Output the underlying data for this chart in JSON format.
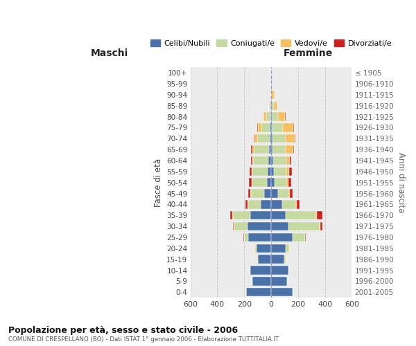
{
  "age_groups": [
    "0-4",
    "5-9",
    "10-14",
    "15-19",
    "20-24",
    "25-29",
    "30-34",
    "35-39",
    "40-44",
    "45-49",
    "50-54",
    "55-59",
    "60-64",
    "65-69",
    "70-74",
    "75-79",
    "80-84",
    "85-89",
    "90-94",
    "95-99",
    "100+"
  ],
  "birth_years": [
    "2001-2005",
    "1996-2000",
    "1991-1995",
    "1986-1990",
    "1981-1985",
    "1976-1980",
    "1971-1975",
    "1966-1970",
    "1961-1965",
    "1956-1960",
    "1951-1955",
    "1946-1950",
    "1941-1945",
    "1936-1940",
    "1931-1935",
    "1926-1930",
    "1921-1925",
    "1916-1920",
    "1911-1915",
    "1906-1910",
    "≤ 1905"
  ],
  "males": {
    "celibi": [
      185,
      140,
      155,
      100,
      110,
      170,
      175,
      155,
      80,
      50,
      30,
      25,
      20,
      15,
      12,
      8,
      5,
      3,
      2,
      1,
      0
    ],
    "coniugati": [
      2,
      2,
      3,
      5,
      10,
      30,
      100,
      130,
      90,
      100,
      110,
      115,
      115,
      110,
      90,
      65,
      30,
      8,
      3,
      1,
      0
    ],
    "vedovi": [
      0,
      0,
      0,
      1,
      2,
      3,
      3,
      3,
      3,
      3,
      3,
      3,
      5,
      15,
      20,
      25,
      20,
      5,
      2,
      0,
      0
    ],
    "divorziati": [
      0,
      0,
      0,
      0,
      2,
      5,
      5,
      18,
      20,
      18,
      20,
      18,
      10,
      8,
      5,
      3,
      2,
      0,
      0,
      0,
      0
    ]
  },
  "females": {
    "nubili": [
      160,
      120,
      130,
      100,
      110,
      160,
      130,
      110,
      80,
      50,
      25,
      20,
      15,
      10,
      8,
      5,
      5,
      3,
      2,
      1,
      0
    ],
    "coniugate": [
      3,
      3,
      5,
      10,
      25,
      90,
      230,
      220,
      100,
      80,
      90,
      95,
      100,
      100,
      100,
      80,
      45,
      15,
      5,
      1,
      0
    ],
    "vedove": [
      0,
      0,
      0,
      2,
      3,
      5,
      5,
      10,
      10,
      10,
      15,
      20,
      25,
      55,
      65,
      80,
      55,
      30,
      18,
      5,
      0
    ],
    "divorziate": [
      0,
      0,
      0,
      0,
      3,
      5,
      15,
      40,
      20,
      20,
      20,
      20,
      10,
      5,
      5,
      3,
      2,
      0,
      0,
      0,
      0
    ]
  },
  "colors": {
    "celibi": "#4a72a8",
    "coniugati": "#c5d9a0",
    "vedovi": "#f5c060",
    "divorziati": "#cc2020"
  },
  "xlim": 600,
  "title": "Popolazione per età, sesso e stato civile - 2006",
  "subtitle": "COMUNE DI CRESPELLANO (BO) - Dati ISTAT 1° gennaio 2006 - Elaborazione TUTTITALIA.IT",
  "xlabel_left": "Maschi",
  "xlabel_right": "Femmine",
  "ylabel_left": "Fasce di età",
  "ylabel_right": "Anni di nascita",
  "legend": [
    "Celibi/Nubili",
    "Coniugati/e",
    "Vedovi/e",
    "Divorziati/e"
  ],
  "bg_color": "#ebebeb"
}
